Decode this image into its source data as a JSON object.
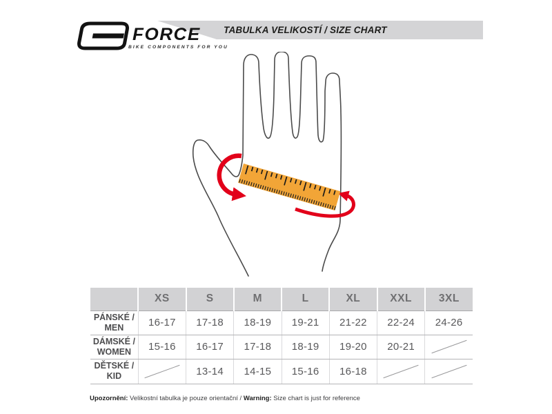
{
  "header": {
    "title": "TABULKA VELIKOSTÍ / SIZE CHART",
    "logo": {
      "brand": "FORCE",
      "tagline": "BIKE COMPONENTS FOR YOU"
    }
  },
  "colors": {
    "accent_red": "#e2001a",
    "ruler_orange": "#f2a537",
    "hand_outline": "#4a4a4a",
    "title_bar_bg": "#d4d4d6",
    "table_header_bg": "#d2d2d4"
  },
  "illustration": {
    "name": "hand-circumference-measurement",
    "elements": [
      "hand-outline",
      "measuring-ruler",
      "wrap-around-arrows"
    ]
  },
  "size_table": {
    "columns": [
      "XS",
      "S",
      "M",
      "L",
      "XL",
      "XXL",
      "3XL"
    ],
    "rows": [
      {
        "label_cs": "PÁNSKÉ /",
        "label_en": "MEN",
        "values": [
          "16-17",
          "17-18",
          "18-19",
          "19-21",
          "21-22",
          "22-24",
          "24-26"
        ]
      },
      {
        "label_cs": "DÁMSKÉ /",
        "label_en": "WOMEN",
        "values": [
          "15-16",
          "16-17",
          "17-18",
          "18-19",
          "19-20",
          "20-21",
          "/"
        ]
      },
      {
        "label_cs": "DĚTSKÉ /",
        "label_en": "KID",
        "values": [
          "/",
          "13-14",
          "14-15",
          "15-16",
          "16-18",
          "/",
          "/"
        ]
      }
    ],
    "not_available_symbol": "/"
  },
  "footnote": {
    "cs_label": "Upozornění:",
    "cs_text": " Velikostní tabulka je pouze orientační / ",
    "en_label": "Warning:",
    "en_text": " Size chart is just for reference"
  }
}
